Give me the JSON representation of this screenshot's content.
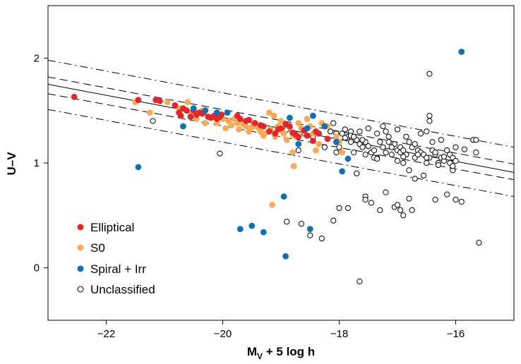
{
  "chart_data": {
    "type": "scatter",
    "title": "",
    "xlabel_main": "M",
    "xlabel_sub": "V",
    "xlabel_rest": " + 5 log h",
    "ylabel": "U–V",
    "xlim": [
      -23,
      -15
    ],
    "ylim": [
      -0.5,
      2.5
    ],
    "x_ticks": [
      -22,
      -20,
      -18,
      -16
    ],
    "x_tick_labels": [
      "−22",
      "−20",
      "−18",
      "−16"
    ],
    "y_ticks": [
      0,
      1,
      2
    ],
    "y_tick_labels": [
      "0",
      "1",
      "2"
    ],
    "grid": false,
    "legend_position": "bottom-left",
    "colors": {
      "elliptical": "#e3262b",
      "s0": "#f7aa58",
      "spiral_irr": "#1070b5",
      "unclassified": "#000000"
    },
    "lines": [
      {
        "style": "solid",
        "x": [
          -23,
          -15
        ],
        "y": [
          1.75,
          0.91
        ]
      },
      {
        "style": "dashed",
        "x": [
          -23,
          -15
        ],
        "y": [
          1.82,
          0.99
        ]
      },
      {
        "style": "dashed",
        "x": [
          -23,
          -15
        ],
        "y": [
          1.66,
          0.84
        ]
      },
      {
        "style": "dashdot",
        "x": [
          -23,
          -15
        ],
        "y": [
          1.98,
          1.15
        ]
      },
      {
        "style": "dashdot",
        "x": [
          -23,
          -15
        ],
        "y": [
          1.51,
          0.68
        ]
      }
    ],
    "series": [
      {
        "name": "Elliptical",
        "marker": "filled",
        "x": [
          -22.55,
          -21.45,
          -21.15,
          -21.08,
          -20.82,
          -20.75,
          -20.72,
          -20.68,
          -20.62,
          -20.55,
          -20.5,
          -20.45,
          -20.4,
          -20.35,
          -20.25,
          -20.2,
          -20.15,
          -20.1,
          -20.05,
          -20.02,
          -19.75,
          -19.7,
          -19.6,
          -19.55,
          -19.45,
          -19.35,
          -19.3,
          -19.2,
          -19.1,
          -19.05,
          -19.0,
          -18.92,
          -18.85,
          -18.8,
          -18.75,
          -18.7,
          -18.6,
          -18.55,
          -18.45,
          -18.4,
          -18.35,
          -18.2
        ],
        "y": [
          1.63,
          1.6,
          1.6,
          1.59,
          1.55,
          1.48,
          1.45,
          1.52,
          1.5,
          1.44,
          1.5,
          1.46,
          1.48,
          1.47,
          1.44,
          1.43,
          1.45,
          1.42,
          1.44,
          1.46,
          1.45,
          1.42,
          1.4,
          1.41,
          1.38,
          1.36,
          1.35,
          1.3,
          1.28,
          1.32,
          1.33,
          1.37,
          1.35,
          1.29,
          1.27,
          1.25,
          1.31,
          1.26,
          1.21,
          1.3,
          1.28,
          1.23
        ]
      },
      {
        "name": "S0",
        "marker": "filled",
        "x": [
          -21.5,
          -21.25,
          -20.95,
          -20.75,
          -20.6,
          -20.55,
          -20.45,
          -20.35,
          -20.3,
          -20.15,
          -20.1,
          -20.0,
          -19.95,
          -19.9,
          -19.85,
          -19.8,
          -19.75,
          -19.72,
          -19.65,
          -19.6,
          -19.55,
          -19.5,
          -19.45,
          -19.4,
          -19.35,
          -19.3,
          -19.25,
          -19.2,
          -19.18,
          -19.12,
          -19.1,
          -19.05,
          -19.0,
          -18.98,
          -18.95,
          -18.9,
          -18.85,
          -18.8,
          -18.78,
          -18.75,
          -18.7,
          -18.65,
          -18.6,
          -18.55,
          -18.5,
          -18.45,
          -18.4,
          -18.35,
          -18.3,
          -18.2,
          -18.05,
          -18.0,
          -17.95,
          -19.15,
          -18.8
        ],
        "y": [
          1.58,
          1.48,
          1.58,
          1.52,
          1.58,
          1.48,
          1.42,
          1.5,
          1.38,
          1.44,
          1.38,
          1.42,
          1.33,
          1.4,
          1.36,
          1.42,
          1.38,
          1.32,
          1.37,
          1.35,
          1.3,
          1.34,
          1.38,
          1.34,
          1.3,
          1.26,
          1.29,
          1.48,
          1.32,
          1.45,
          1.25,
          1.35,
          1.4,
          1.3,
          1.28,
          1.22,
          1.34,
          1.1,
          0.97,
          1.25,
          1.38,
          1.33,
          1.3,
          1.42,
          1.35,
          1.28,
          1.12,
          1.18,
          1.38,
          1.35,
          1.25,
          1.2,
          1.1,
          0.6,
          1.27
        ]
      },
      {
        "name": "Spiral + Irr",
        "marker": "filled",
        "x": [
          -21.45,
          -20.68,
          -20.5,
          -20.3,
          -20.1,
          -19.92,
          -19.7,
          -19.5,
          -19.3,
          -18.95,
          -18.92,
          -18.85,
          -18.7,
          -18.55,
          -18.5,
          -18.45,
          -18.25,
          -18.05,
          -17.95,
          -17.85,
          -15.9
        ],
        "y": [
          0.96,
          1.35,
          1.52,
          1.5,
          1.48,
          1.48,
          0.37,
          0.4,
          0.34,
          0.68,
          0.11,
          1.43,
          1.18,
          1.33,
          0.37,
          1.45,
          1.35,
          1.2,
          0.92,
          1.04,
          2.06
        ]
      },
      {
        "name": "Unclassified",
        "marker": "open",
        "x": [
          -21.2,
          -20.05,
          -18.9,
          -18.9,
          -18.65,
          -18.5,
          -18.3,
          -18.1,
          -18.0,
          -17.95,
          -17.85,
          -17.8,
          -17.7,
          -17.65,
          -17.6,
          -17.55,
          -17.5,
          -17.45,
          -17.4,
          -17.35,
          -17.3,
          -17.25,
          -17.2,
          -17.15,
          -17.1,
          -17.05,
          -17.0,
          -16.95,
          -16.9,
          -16.85,
          -16.8,
          -16.75,
          -16.7,
          -16.65,
          -16.6,
          -16.55,
          -16.5,
          -16.45,
          -16.4,
          -16.35,
          -16.3,
          -16.25,
          -16.2,
          -16.15,
          -16.1,
          -16.05,
          -16.0,
          -17.55,
          -17.45,
          -17.3,
          -17.2,
          -17.05,
          -16.95,
          -16.9,
          -16.8,
          -17.55,
          -17.7,
          -17.85,
          -18.05,
          -18.25,
          -18.45,
          -16.45,
          -16.45,
          -16.45,
          -16.7,
          -15.7,
          -15.65,
          -15.6,
          -16.35,
          -16.15,
          -16.0,
          -15.9,
          -17.0,
          -16.75,
          -16.55,
          -17.65,
          -17.25,
          -17.9,
          -18.15,
          -18.05,
          -17.8,
          -17.65,
          -17.5,
          -17.35,
          -17.2,
          -17.0,
          -16.85,
          -16.6,
          -16.4,
          -16.25,
          -16.0,
          -15.85,
          -15.65,
          -18.1,
          -18.6,
          -18.7,
          -17.4,
          -17.0,
          -16.65,
          -16.3,
          -16.1,
          -16.05,
          -16.5,
          -17.1,
          -17.8,
          -18.35,
          -18.0,
          -17.75,
          -17.6,
          -17.15,
          -16.95,
          -16.7,
          -16.9,
          -17.35,
          -17.55,
          -17.75,
          -17.9,
          -18.15,
          -16.05,
          -16.2,
          -16.35,
          -16.5,
          -16.8,
          -16.9
        ],
        "y": [
          1.4,
          1.09,
          1.32,
          0.44,
          0.42,
          0.31,
          0.28,
          0.45,
          0.57,
          1.28,
          1.25,
          1.3,
          1.22,
          1.18,
          1.15,
          1.2,
          1.16,
          1.1,
          1.12,
          1.05,
          1.2,
          1.15,
          1.1,
          1.25,
          1.08,
          1.18,
          1.12,
          1.15,
          1.0,
          1.08,
          1.2,
          1.15,
          1.05,
          1.12,
          1.1,
          1.08,
          1.0,
          1.05,
          1.12,
          1.08,
          1.0,
          1.05,
          1.02,
          1.12,
          1.08,
          1.05,
          1.02,
          0.68,
          0.62,
          0.55,
          0.72,
          0.58,
          0.55,
          0.5,
          0.66,
          0.65,
          0.9,
          0.57,
          1.1,
          1.15,
          1.25,
          1.85,
          1.45,
          1.4,
          0.85,
          1.22,
          1.22,
          0.24,
          0.65,
          0.7,
          0.65,
          0.63,
          0.6,
          0.55,
          0.88,
          -0.13,
          1.35,
          1.32,
          1.3,
          1.28,
          1.26,
          1.3,
          1.33,
          1.28,
          1.3,
          1.32,
          1.25,
          1.28,
          1.2,
          1.22,
          1.15,
          1.13,
          1.1,
          1.38,
          1.28,
          1.12,
          1.05,
          1.02,
          1.08,
          0.98,
          1.0,
          0.93,
          1.3,
          1.15,
          1.2,
          1.28,
          1.15,
          1.25,
          1.22,
          1.2,
          1.1,
          1.18,
          1.06,
          1.04,
          1.08,
          1.1,
          1.24,
          1.3,
          0.97,
          1.06,
          1.1,
          1.05,
          0.93,
          1.12
        ]
      }
    ]
  }
}
